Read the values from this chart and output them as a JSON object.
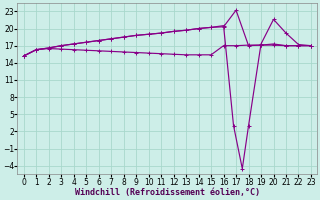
{
  "background_color": "#cdeee8",
  "grid_color": "#a8d8cc",
  "line_color": "#880088",
  "xlabel": "Windchill (Refroidissement éolien,°C)",
  "xlabel_fontsize": 6,
  "tick_fontsize": 5.5,
  "xlim": [
    -0.5,
    23.5
  ],
  "ylim": [
    -5.5,
    24.5
  ],
  "yticks": [
    -4,
    -1,
    2,
    5,
    8,
    11,
    14,
    17,
    20,
    23
  ],
  "xticks": [
    0,
    1,
    2,
    3,
    4,
    5,
    6,
    7,
    8,
    9,
    10,
    11,
    12,
    13,
    14,
    15,
    16,
    17,
    18,
    19,
    20,
    21,
    22,
    23
  ],
  "s1_x": [
    0,
    1,
    2,
    3,
    4,
    5,
    6,
    7,
    8,
    9,
    10,
    11,
    12,
    13,
    14,
    15,
    16,
    17,
    18,
    19,
    20,
    21,
    22,
    23
  ],
  "s1_y": [
    15.2,
    16.3,
    16.5,
    16.4,
    16.3,
    16.2,
    16.1,
    16.0,
    15.9,
    15.8,
    15.7,
    15.6,
    15.5,
    15.4,
    15.4,
    15.4,
    17.0,
    17.0,
    17.1,
    17.1,
    17.3,
    17.0,
    17.0,
    17.0
  ],
  "s2_x": [
    0,
    1,
    2,
    3,
    4,
    5,
    6,
    7,
    8,
    9,
    10,
    11,
    12,
    13,
    14,
    15,
    16,
    17,
    18,
    19,
    20,
    21,
    22,
    23
  ],
  "s2_y": [
    15.2,
    16.3,
    16.6,
    17.0,
    17.3,
    17.6,
    17.9,
    18.2,
    18.5,
    18.8,
    19.0,
    19.2,
    19.5,
    19.7,
    20.0,
    20.2,
    20.3,
    23.2,
    17.0,
    17.1,
    17.1,
    17.0,
    17.0,
    17.0
  ],
  "s3_x": [
    0,
    1,
    2,
    3,
    4,
    5,
    6,
    7,
    8,
    9,
    10,
    11,
    12,
    13,
    14,
    15,
    16,
    16.8,
    17.5,
    18,
    19,
    20,
    21,
    22,
    23
  ],
  "s3_y": [
    15.2,
    16.3,
    16.6,
    17.0,
    17.3,
    17.6,
    17.9,
    18.2,
    18.5,
    18.8,
    19.0,
    19.2,
    19.5,
    19.7,
    20.0,
    20.2,
    20.5,
    3.0,
    -4.5,
    3.0,
    17.3,
    21.6,
    19.2,
    17.2,
    17.0
  ]
}
